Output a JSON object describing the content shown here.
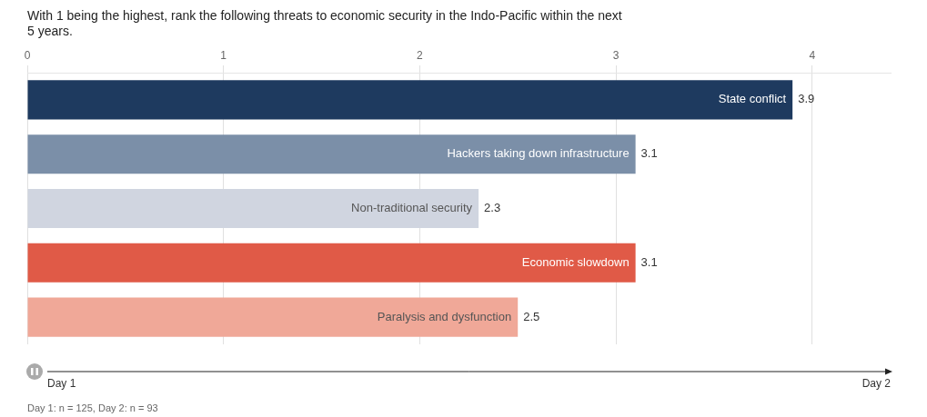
{
  "chart_data": {
    "type": "bar",
    "orientation": "horizontal",
    "title": "With 1 being the highest, rank the following threats to economic security in the Indo-Pacific within the next\n5 years.",
    "categories": [
      "State conflict",
      "Hackers taking down infrastructure",
      "Non-traditional security",
      "Economic slowdown",
      "Paralysis and dysfunction"
    ],
    "values": [
      3.9,
      3.1,
      2.3,
      3.1,
      2.5
    ],
    "colors": [
      "#1e3a5f",
      "#7b8fa8",
      "#d0d5e0",
      "#e05a47",
      "#f0a898"
    ],
    "xlim": [
      0,
      4.4
    ],
    "xticks": [
      0,
      1,
      2,
      3,
      4
    ],
    "grid": true,
    "data_labels": true,
    "tick_labels": "x",
    "annotations": [
      "Day 1",
      "Day 2",
      "Day 1: n = 125, Day 2: n = 93"
    ]
  }
}
